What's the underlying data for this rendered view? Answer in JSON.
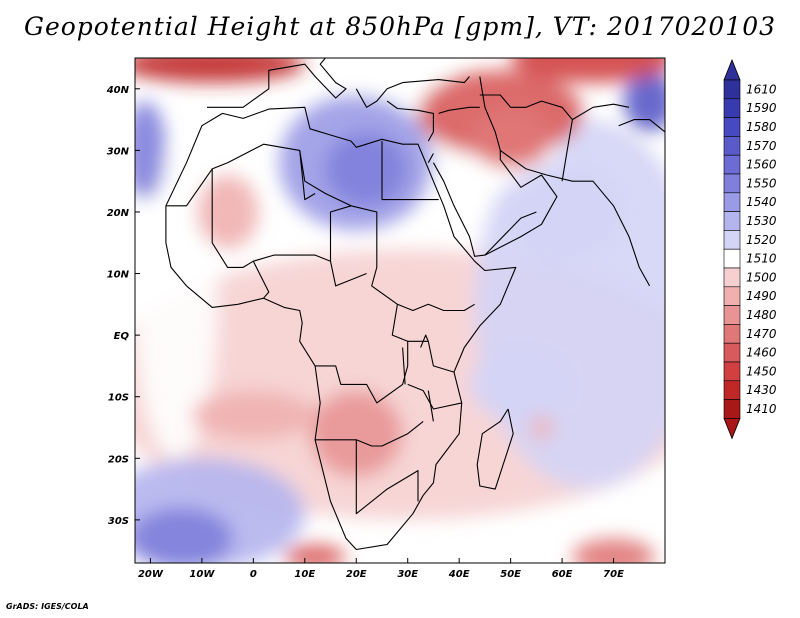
{
  "title": "Geopotential Height at 850hPa [gpm], VT: 2017020103",
  "credit": "GrADS: IGES/COLA",
  "map": {
    "lon_range": [
      -23,
      80
    ],
    "lat_range": [
      -37,
      45
    ],
    "y_ticks": [
      "40N",
      "30N",
      "20N",
      "10N",
      "EQ",
      "10S",
      "20S",
      "30S"
    ],
    "x_ticks": [
      "20W",
      "10W",
      "0",
      "10E",
      "20E",
      "30E",
      "40E",
      "50E",
      "60E",
      "70E"
    ],
    "background_color": "#ffffff"
  },
  "colorbar": {
    "labels": [
      "1610",
      "1590",
      "1580",
      "1570",
      "1560",
      "1550",
      "1540",
      "1530",
      "1520",
      "1510",
      "1500",
      "1490",
      "1480",
      "1470",
      "1460",
      "1450",
      "1430",
      "1410"
    ],
    "colors": [
      "#30309a",
      "#3a3ab0",
      "#4848c0",
      "#5a5ac8",
      "#6c6cd4",
      "#8080dc",
      "#9a9ae6",
      "#b4b4ee",
      "#d4d4f6",
      "#ffffff",
      "#f6d0d0",
      "#f0b0b0",
      "#e89494",
      "#e07878",
      "#d85a5a",
      "#d04040",
      "#c02828",
      "#a81818"
    ]
  },
  "chart_data": {
    "type": "heatmap",
    "title": "Geopotential Height at 850hPa [gpm], VT: 2017020103",
    "variable": "geopotential height 850hPa",
    "units": "gpm",
    "levels": [
      1410,
      1430,
      1450,
      1460,
      1470,
      1480,
      1490,
      1500,
      1510,
      1520,
      1530,
      1540,
      1550,
      1560,
      1570,
      1580,
      1590,
      1610
    ],
    "features": [
      {
        "name": "high over Libya / central Sahara",
        "lon": 20,
        "lat": 29,
        "value": 1560
      },
      {
        "name": "high off Morocco",
        "lon": -22,
        "lat": 30,
        "value": 1570
      },
      {
        "name": "high off Namibia / South Atlantic",
        "lon": -12,
        "lat": -32,
        "value": 1560
      },
      {
        "name": "low over Iran / Mesopotamia",
        "lon": 47,
        "lat": 35,
        "value": 1460
      },
      {
        "name": "low over Mediterranean north edge",
        "lon": -10,
        "lat": 43,
        "value": 1430
      },
      {
        "name": "low over south-central Africa",
        "lon": 21,
        "lat": -16,
        "value": 1480
      },
      {
        "name": "high over Himalaya region",
        "lon": 79,
        "lat": 40,
        "value": 1590
      },
      {
        "name": "low south of Africa",
        "lon": 12,
        "lat": -37,
        "value": 1450
      },
      {
        "name": "low southeast Indian Ocean",
        "lon": 72,
        "lat": -36,
        "value": 1460
      }
    ]
  }
}
